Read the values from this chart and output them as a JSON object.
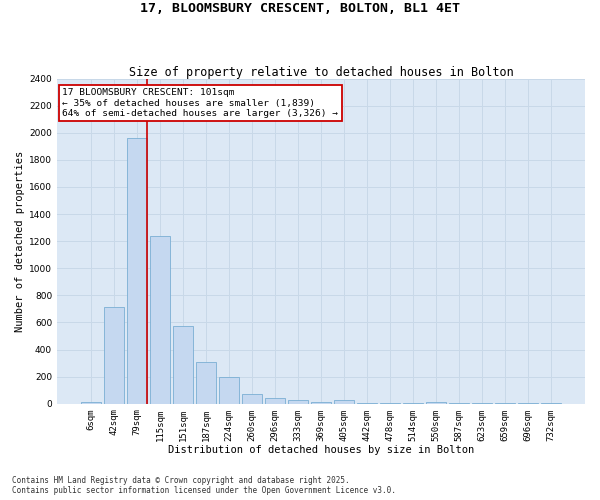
{
  "title": "17, BLOOMSBURY CRESCENT, BOLTON, BL1 4ET",
  "subtitle": "Size of property relative to detached houses in Bolton",
  "xlabel": "Distribution of detached houses by size in Bolton",
  "ylabel": "Number of detached properties",
  "categories": [
    "6sqm",
    "42sqm",
    "79sqm",
    "115sqm",
    "151sqm",
    "187sqm",
    "224sqm",
    "260sqm",
    "296sqm",
    "333sqm",
    "369sqm",
    "405sqm",
    "442sqm",
    "478sqm",
    "514sqm",
    "550sqm",
    "587sqm",
    "623sqm",
    "659sqm",
    "696sqm",
    "732sqm"
  ],
  "values": [
    10,
    715,
    1960,
    1240,
    575,
    305,
    200,
    75,
    40,
    28,
    10,
    30,
    5,
    5,
    5,
    10,
    5,
    5,
    2,
    2,
    2
  ],
  "bar_color": "#c5d8f0",
  "bar_edge_color": "#7aafd4",
  "grid_color": "#c8d8e8",
  "background_color": "#dce8f5",
  "vline_color": "#cc0000",
  "vline_x_index": 2,
  "annotation_text": "17 BLOOMSBURY CRESCENT: 101sqm\n← 35% of detached houses are smaller (1,839)\n64% of semi-detached houses are larger (3,326) →",
  "annotation_box_color": "#cc0000",
  "ylim": [
    0,
    2400
  ],
  "yticks": [
    0,
    200,
    400,
    600,
    800,
    1000,
    1200,
    1400,
    1600,
    1800,
    2000,
    2200,
    2400
  ],
  "footer_text": "Contains HM Land Registry data © Crown copyright and database right 2025.\nContains public sector information licensed under the Open Government Licence v3.0.",
  "title_fontsize": 9.5,
  "subtitle_fontsize": 8.5,
  "axis_label_fontsize": 7.5,
  "tick_fontsize": 6.5,
  "annotation_fontsize": 6.8,
  "footer_fontsize": 5.5
}
